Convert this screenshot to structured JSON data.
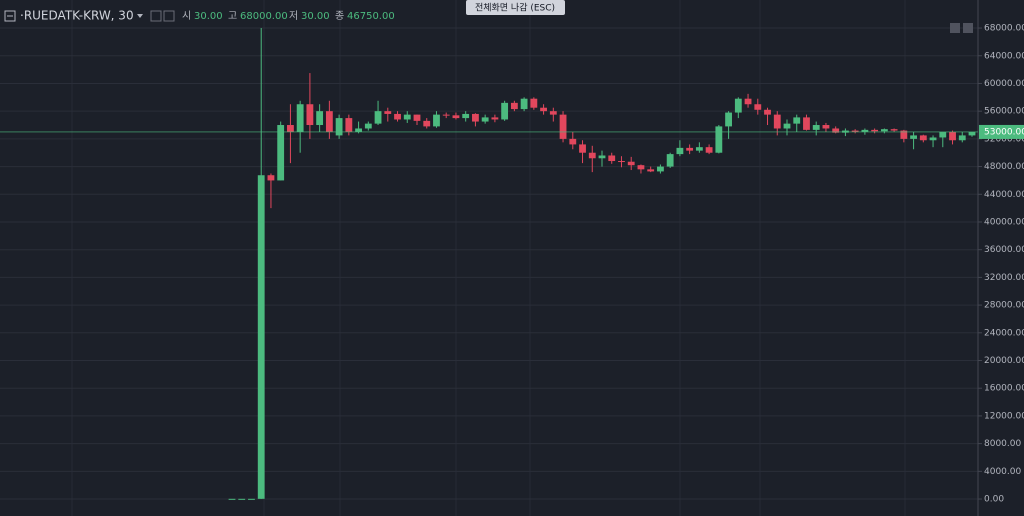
{
  "chart_data": {
    "type": "candlestick",
    "ylim": [
      -2450,
      72050
    ],
    "yticks": [
      {
        "value": 0,
        "label": "0.00"
      },
      {
        "value": 4000,
        "label": "4000.00"
      },
      {
        "value": 8000,
        "label": "8000.00"
      },
      {
        "value": 12000,
        "label": "12000.00"
      },
      {
        "value": 16000,
        "label": "16000.00"
      },
      {
        "value": 20000,
        "label": "20000.00"
      },
      {
        "value": 24000,
        "label": "24000.00"
      },
      {
        "value": 28000,
        "label": "28000.00"
      },
      {
        "value": 32000,
        "label": "32000.00"
      },
      {
        "value": 36000,
        "label": "36000.00"
      },
      {
        "value": 40000,
        "label": "40000.00"
      },
      {
        "value": 44000,
        "label": "44000.00"
      },
      {
        "value": 48000,
        "label": "48000.00"
      },
      {
        "value": 52000,
        "label": "52000.00"
      },
      {
        "value": 56000,
        "label": "56000.00"
      },
      {
        "value": 60000,
        "label": "60000.00"
      },
      {
        "value": 64000,
        "label": "64000.00"
      },
      {
        "value": 68000,
        "label": "68000.00"
      }
    ],
    "grid": true,
    "up_color": "#4cbb7f",
    "down_color": "#e2475d",
    "last_price": {
      "value": 53000,
      "label": "53000.00"
    },
    "open": [
      30,
      30,
      30,
      30,
      46750,
      46000,
      54000,
      53000,
      57000,
      54000,
      56000,
      52500,
      55000,
      53000,
      53500,
      54200,
      56000,
      55600,
      54800,
      55500,
      54600,
      53800,
      55500,
      55400,
      55000,
      55600,
      54500,
      55100,
      54800,
      57200,
      56300,
      57800,
      56500,
      56000,
      55500,
      52000,
      51200,
      50000,
      49200,
      49600,
      48800,
      48700,
      48200,
      47600,
      47300,
      48000,
      49800,
      50700,
      50300,
      50800,
      50000,
      53800,
      55800,
      57800,
      57000,
      56200,
      55500,
      53500,
      54200,
      55100,
      53300,
      54000,
      53500,
      52900,
      53200,
      53000,
      53300,
      53100,
      53400,
      53200,
      52000,
      52500,
      51800,
      52200,
      53000,
      51800,
      52500
    ],
    "high": [
      30,
      30,
      30,
      68000,
      47000,
      54500,
      57000,
      57500,
      61500,
      57000,
      57500,
      55500,
      55500,
      54500,
      54500,
      57500,
      56500,
      56000,
      56000,
      55500,
      55000,
      56000,
      55800,
      55800,
      56000,
      55700,
      55500,
      55500,
      57500,
      57500,
      58000,
      58000,
      57000,
      56500,
      56000,
      53000,
      51800,
      51000,
      50300,
      50000,
      49500,
      49400,
      48300,
      48000,
      48300,
      50000,
      51800,
      51200,
      51500,
      51200,
      54000,
      56000,
      58000,
      58500,
      57800,
      56500,
      56000,
      54800,
      55500,
      55500,
      54500,
      54300,
      53800,
      53500,
      53400,
      53500,
      53500,
      53500,
      53500,
      53300,
      53000,
      52600,
      52500,
      53000,
      53200,
      53000,
      53000
    ],
    "low": [
      30,
      30,
      30,
      30,
      42000,
      46000,
      48500,
      50000,
      52000,
      53000,
      52000,
      52000,
      52500,
      52800,
      53200,
      54000,
      54500,
      54500,
      54300,
      54000,
      53500,
      53600,
      55000,
      54800,
      54500,
      53800,
      54200,
      54400,
      54600,
      56000,
      56000,
      56200,
      55500,
      54500,
      51500,
      50500,
      48500,
      47200,
      48000,
      48400,
      47900,
      47500,
      47000,
      47200,
      47000,
      47800,
      49500,
      49800,
      50000,
      49800,
      49900,
      52000,
      55000,
      56500,
      55500,
      54000,
      52500,
      52500,
      53000,
      53200,
      52500,
      53000,
      52800,
      52400,
      52800,
      52600,
      52800,
      52800,
      53000,
      51500,
      50500,
      51500,
      50800,
      50800,
      51200,
      51500,
      52300
    ],
    "close": [
      30,
      30,
      30,
      46750,
      46000,
      54000,
      53000,
      57000,
      54000,
      56000,
      53000,
      55000,
      53000,
      53500,
      54200,
      56000,
      55600,
      54800,
      55500,
      54600,
      53800,
      55500,
      55400,
      55000,
      55600,
      54500,
      55100,
      54800,
      57200,
      56300,
      57800,
      56500,
      56000,
      55500,
      52000,
      51200,
      50000,
      49200,
      49600,
      48800,
      48700,
      48200,
      47600,
      47300,
      48000,
      49800,
      50700,
      50300,
      50800,
      50000,
      53800,
      55800,
      57800,
      57000,
      56200,
      55500,
      53500,
      54200,
      55100,
      53300,
      54000,
      53500,
      52900,
      53200,
      53000,
      53300,
      53100,
      53400,
      53200,
      52000,
      52500,
      51800,
      52200,
      53000,
      51800,
      52500,
      53000
    ]
  },
  "header": {
    "symbol": "·RUEDATK-KRW, 30",
    "open_key": "시",
    "open": "30.00",
    "high_key": "고",
    "high": "68000.00",
    "low_key": "저",
    "low": "30.00",
    "close_key": "종",
    "close": "46750.00"
  },
  "tooltip": "전체화면 나감 (ESC)"
}
